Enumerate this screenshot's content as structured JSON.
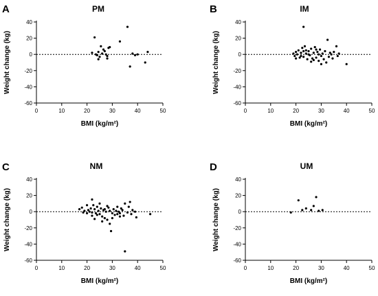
{
  "chart_data": [
    {
      "type": "scatter",
      "panel_letter": "A",
      "title": "PM",
      "xlabel": "BMI (kg/m²)",
      "ylabel": "Weight change (kg)",
      "xlim": [
        0,
        50
      ],
      "ylim": [
        -60,
        40
      ],
      "xticks": [
        0,
        10,
        20,
        30,
        40,
        50
      ],
      "yticks": [
        -60,
        -40,
        -20,
        0,
        20,
        40
      ],
      "reference_line_y": 0,
      "points": [
        [
          22,
          2
        ],
        [
          23,
          21
        ],
        [
          23.5,
          0
        ],
        [
          24,
          -1
        ],
        [
          24.5,
          3
        ],
        [
          25,
          -3
        ],
        [
          25.5,
          10
        ],
        [
          26,
          1
        ],
        [
          26.5,
          6
        ],
        [
          27,
          4
        ],
        [
          27.5,
          0
        ],
        [
          28,
          -2
        ],
        [
          28.5,
          8
        ],
        [
          29,
          9
        ],
        [
          24.5,
          -6
        ],
        [
          28,
          -5
        ],
        [
          33,
          16
        ],
        [
          36,
          34
        ],
        [
          37,
          -15
        ],
        [
          39,
          -1
        ],
        [
          40,
          0
        ],
        [
          43,
          -10
        ],
        [
          44,
          3
        ],
        [
          38,
          1
        ]
      ]
    },
    {
      "type": "scatter",
      "panel_letter": "B",
      "title": "IM",
      "xlabel": "BMI (kg/m²)",
      "ylabel": "Weight change (kg)",
      "xlim": [
        0,
        50
      ],
      "ylim": [
        -60,
        40
      ],
      "xticks": [
        0,
        10,
        20,
        30,
        40,
        50
      ],
      "yticks": [
        -60,
        -40,
        -20,
        0,
        20,
        40
      ],
      "reference_line_y": 0,
      "points": [
        [
          19,
          1
        ],
        [
          19.5,
          -2
        ],
        [
          20,
          3
        ],
        [
          20.5,
          0
        ],
        [
          21,
          5
        ],
        [
          21.5,
          -4
        ],
        [
          22,
          2
        ],
        [
          22.5,
          8
        ],
        [
          23,
          -3
        ],
        [
          23.5,
          10
        ],
        [
          24,
          1
        ],
        [
          24.5,
          -6
        ],
        [
          25,
          4
        ],
        [
          25.5,
          -1
        ],
        [
          26,
          7
        ],
        [
          26.5,
          -5
        ],
        [
          27,
          2
        ],
        [
          27.5,
          9
        ],
        [
          28,
          -4
        ],
        [
          28.5,
          3
        ],
        [
          29,
          -8
        ],
        [
          29.5,
          6
        ],
        [
          30,
          -2
        ],
        [
          30.5,
          1
        ],
        [
          31,
          -6
        ],
        [
          31.5,
          4
        ],
        [
          32,
          -10
        ],
        [
          32.5,
          18
        ],
        [
          33,
          -3
        ],
        [
          33.5,
          2
        ],
        [
          34,
          0
        ],
        [
          34.5,
          -5
        ],
        [
          35,
          3
        ],
        [
          36,
          10
        ],
        [
          36.5,
          -2
        ],
        [
          37,
          1
        ],
        [
          20,
          -5
        ],
        [
          22,
          -2
        ],
        [
          24,
          5
        ],
        [
          26,
          -9
        ],
        [
          28,
          6
        ],
        [
          30,
          -12
        ],
        [
          25,
          0
        ],
        [
          27,
          -7
        ],
        [
          23,
          34
        ],
        [
          40,
          -12
        ],
        [
          23,
          4
        ],
        [
          29,
          0
        ]
      ]
    },
    {
      "type": "scatter",
      "panel_letter": "C",
      "title": "NM",
      "xlabel": "BMI (kg/m²)",
      "ylabel": "Weight change (kg)",
      "xlim": [
        0,
        50
      ],
      "ylim": [
        -60,
        40
      ],
      "xticks": [
        0,
        10,
        20,
        30,
        40,
        50
      ],
      "yticks": [
        -60,
        -40,
        -20,
        0,
        20,
        40
      ],
      "reference_line_y": 0,
      "points": [
        [
          17,
          3
        ],
        [
          18,
          5
        ],
        [
          18.5,
          -1
        ],
        [
          19,
          1
        ],
        [
          20,
          -2
        ],
        [
          20.5,
          2
        ],
        [
          21,
          0
        ],
        [
          21.5,
          4
        ],
        [
          22,
          -5
        ],
        [
          22,
          15
        ],
        [
          22.5,
          8
        ],
        [
          23,
          3
        ],
        [
          23.5,
          -2
        ],
        [
          24,
          6
        ],
        [
          24.5,
          1
        ],
        [
          25,
          -3
        ],
        [
          25.5,
          4
        ],
        [
          26,
          -6
        ],
        [
          26.5,
          2
        ],
        [
          27,
          -8
        ],
        [
          27.5,
          0
        ],
        [
          28,
          -10
        ],
        [
          28.5,
          5
        ],
        [
          29,
          -15
        ],
        [
          29.5,
          -24
        ],
        [
          30,
          -2
        ],
        [
          30.5,
          3
        ],
        [
          31,
          -4
        ],
        [
          31.5,
          1
        ],
        [
          32,
          -3
        ],
        [
          32.5,
          0
        ],
        [
          33,
          -2
        ],
        [
          33.5,
          4
        ],
        [
          34,
          2
        ],
        [
          34.5,
          -5
        ],
        [
          35,
          -49
        ],
        [
          35,
          10
        ],
        [
          36,
          -1
        ],
        [
          36.5,
          6
        ],
        [
          37,
          12
        ],
        [
          37.5,
          -3
        ],
        [
          38,
          2
        ],
        [
          39,
          0
        ],
        [
          39.5,
          -7
        ],
        [
          45,
          -3
        ],
        [
          20,
          8
        ],
        [
          23,
          -9
        ],
        [
          25,
          10
        ],
        [
          26,
          -12
        ],
        [
          28,
          7
        ],
        [
          30,
          -8
        ],
        [
          32,
          6
        ],
        [
          24,
          -4
        ],
        [
          27,
          3
        ],
        [
          29,
          1
        ],
        [
          22,
          -1
        ],
        [
          33,
          -6
        ]
      ]
    },
    {
      "type": "scatter",
      "panel_letter": "D",
      "title": "UM",
      "xlabel": "BMI (kg/m²)",
      "ylabel": "Weight change (kg)",
      "xlim": [
        0,
        50
      ],
      "ylim": [
        -60,
        40
      ],
      "xticks": [
        0,
        10,
        20,
        30,
        40,
        50
      ],
      "yticks": [
        -60,
        -40,
        -20,
        0,
        20,
        40
      ],
      "reference_line_y": 0,
      "points": [
        [
          18,
          -1
        ],
        [
          21,
          14
        ],
        [
          22.5,
          2
        ],
        [
          24,
          4
        ],
        [
          26,
          2
        ],
        [
          27,
          7
        ],
        [
          28,
          18
        ],
        [
          29,
          1
        ],
        [
          30.5,
          2
        ]
      ]
    }
  ]
}
